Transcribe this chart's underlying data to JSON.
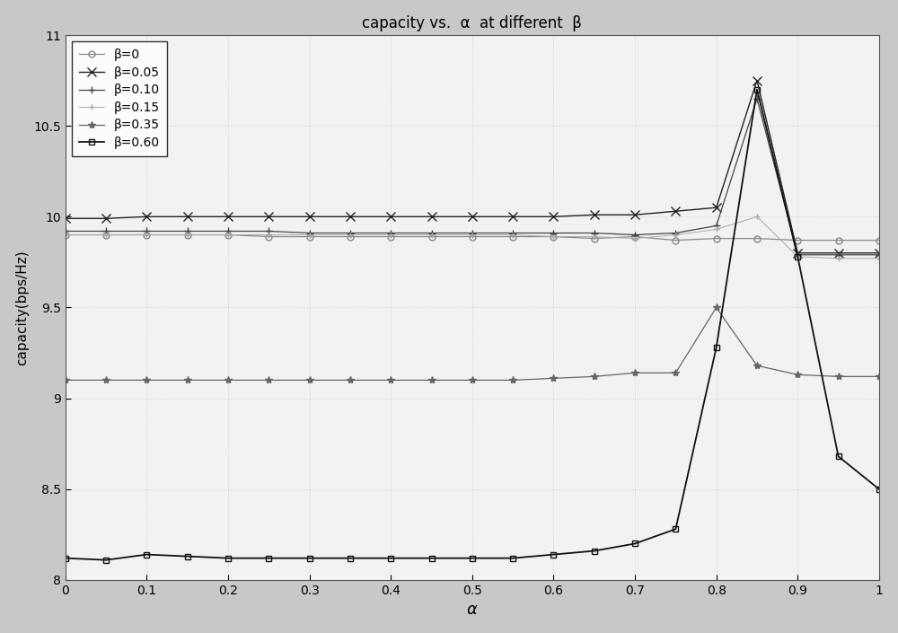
{
  "title": "capacity vs.  α  at different  β",
  "xlabel": "α",
  "ylabel": "capacity(bps/Hz)",
  "xlim": [
    0,
    1
  ],
  "ylim": [
    8,
    11
  ],
  "yticks": [
    8,
    8.5,
    9,
    9.5,
    10,
    10.5,
    11
  ],
  "xticks": [
    0,
    0.1,
    0.2,
    0.3,
    0.4,
    0.5,
    0.6,
    0.7,
    0.8,
    0.9,
    1.0
  ],
  "series": [
    {
      "label": "β=0",
      "color": "#888888",
      "marker": "o",
      "markersize": 5,
      "linewidth": 0.9,
      "linestyle": "-",
      "x": [
        0.0,
        0.05,
        0.1,
        0.15,
        0.2,
        0.25,
        0.3,
        0.35,
        0.4,
        0.45,
        0.5,
        0.55,
        0.6,
        0.65,
        0.7,
        0.75,
        0.8,
        0.85,
        0.9,
        0.95,
        1.0
      ],
      "y": [
        9.9,
        9.9,
        9.9,
        9.9,
        9.9,
        9.89,
        9.89,
        9.89,
        9.89,
        9.89,
        9.89,
        9.89,
        9.89,
        9.88,
        9.89,
        9.87,
        9.88,
        9.88,
        9.87,
        9.87,
        9.87
      ],
      "hollow": true
    },
    {
      "label": "β=0.05",
      "color": "#222222",
      "marker": "x",
      "markersize": 7,
      "linewidth": 1.0,
      "linestyle": "-",
      "x": [
        0.0,
        0.05,
        0.1,
        0.15,
        0.2,
        0.25,
        0.3,
        0.35,
        0.4,
        0.45,
        0.5,
        0.55,
        0.6,
        0.65,
        0.7,
        0.75,
        0.8,
        0.85,
        0.9,
        0.95,
        1.0
      ],
      "y": [
        9.99,
        9.99,
        10.0,
        10.0,
        10.0,
        10.0,
        10.0,
        10.0,
        10.0,
        10.0,
        10.0,
        10.0,
        10.0,
        10.01,
        10.01,
        10.03,
        10.05,
        10.75,
        9.8,
        9.8,
        9.8
      ],
      "hollow": false
    },
    {
      "label": "β=0.10",
      "color": "#444444",
      "marker": "+",
      "markersize": 6,
      "linewidth": 0.9,
      "linestyle": "-",
      "x": [
        0.0,
        0.05,
        0.1,
        0.15,
        0.2,
        0.25,
        0.3,
        0.35,
        0.4,
        0.45,
        0.5,
        0.55,
        0.6,
        0.65,
        0.7,
        0.75,
        0.8,
        0.85,
        0.9,
        0.95,
        1.0
      ],
      "y": [
        9.92,
        9.92,
        9.92,
        9.92,
        9.92,
        9.92,
        9.91,
        9.91,
        9.91,
        9.91,
        9.91,
        9.91,
        9.91,
        9.91,
        9.9,
        9.91,
        9.95,
        10.65,
        9.79,
        9.79,
        9.79
      ],
      "hollow": false
    },
    {
      "label": "β=0.15",
      "color": "#aaaaaa",
      "marker": "+",
      "markersize": 5,
      "linewidth": 0.7,
      "linestyle": "-",
      "x": [
        0.0,
        0.05,
        0.1,
        0.15,
        0.2,
        0.25,
        0.3,
        0.35,
        0.4,
        0.45,
        0.5,
        0.55,
        0.6,
        0.65,
        0.7,
        0.75,
        0.8,
        0.85,
        0.9,
        0.95,
        1.0
      ],
      "y": [
        9.9,
        9.9,
        9.9,
        9.9,
        9.9,
        9.9,
        9.9,
        9.9,
        9.9,
        9.9,
        9.9,
        9.9,
        9.89,
        9.89,
        9.88,
        9.9,
        9.93,
        10.0,
        9.78,
        9.77,
        9.77
      ],
      "hollow": false
    },
    {
      "label": "β=0.35",
      "color": "#666666",
      "marker": "*",
      "markersize": 6,
      "linewidth": 0.9,
      "linestyle": "-",
      "x": [
        0.0,
        0.05,
        0.1,
        0.15,
        0.2,
        0.25,
        0.3,
        0.35,
        0.4,
        0.45,
        0.5,
        0.55,
        0.6,
        0.65,
        0.7,
        0.75,
        0.8,
        0.85,
        0.9,
        0.95,
        1.0
      ],
      "y": [
        9.1,
        9.1,
        9.1,
        9.1,
        9.1,
        9.1,
        9.1,
        9.1,
        9.1,
        9.1,
        9.1,
        9.1,
        9.11,
        9.12,
        9.14,
        9.14,
        9.5,
        9.18,
        9.13,
        9.12,
        9.12
      ],
      "hollow": false
    },
    {
      "label": "β=0.60",
      "color": "#111111",
      "marker": "s",
      "markersize": 5,
      "linewidth": 1.3,
      "linestyle": "-",
      "x": [
        0.0,
        0.05,
        0.1,
        0.15,
        0.2,
        0.25,
        0.3,
        0.35,
        0.4,
        0.45,
        0.5,
        0.55,
        0.6,
        0.65,
        0.7,
        0.75,
        0.8,
        0.85,
        0.9,
        0.95,
        1.0
      ],
      "y": [
        8.12,
        8.11,
        8.14,
        8.13,
        8.12,
        8.12,
        8.12,
        8.12,
        8.12,
        8.12,
        8.12,
        8.12,
        8.14,
        8.16,
        8.2,
        8.28,
        9.28,
        10.7,
        9.78,
        8.68,
        8.5
      ],
      "hollow": true
    }
  ],
  "background_color": "#f2f2f2",
  "grid_color": "#cccccc",
  "figure_facecolor": "#c8c8c8"
}
